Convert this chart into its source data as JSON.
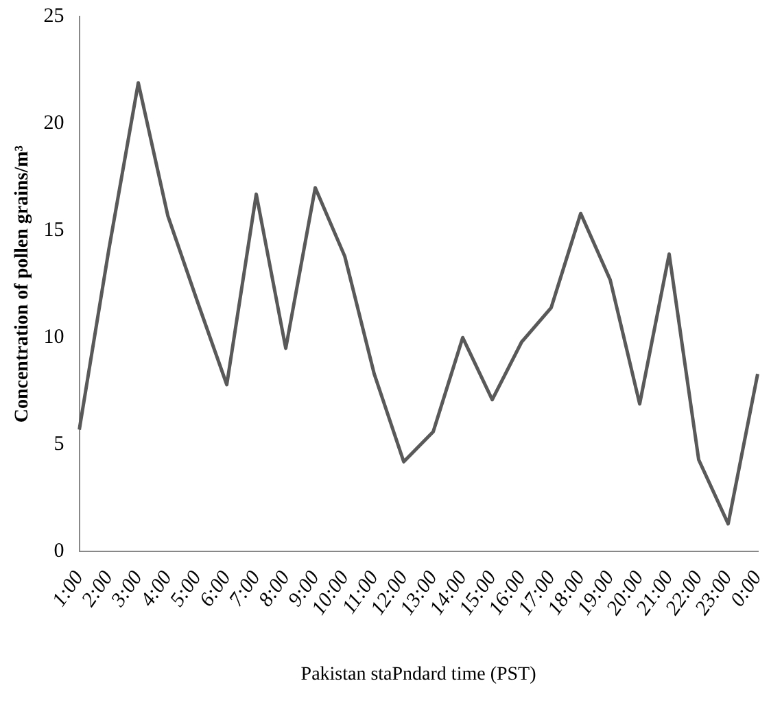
{
  "chart_data": {
    "type": "line",
    "xlabel": "Pakistan staPndard time (PST)",
    "ylabel": "Concentration of pollen grains/m³",
    "categories": [
      "1:00",
      "2:00",
      "3:00",
      "4:00",
      "5:00",
      "6:00",
      "7:00",
      "8:00",
      "9:00",
      "10:00",
      "11:00",
      "12:00",
      "13:00",
      "14:00",
      "15:00",
      "16:00",
      "17:00",
      "18:00",
      "19:00",
      "20:00",
      "21:00",
      "22:00",
      "23:00",
      "0:00"
    ],
    "series": [
      {
        "color": "#595959",
        "values": [
          5.7,
          14.1,
          21.9,
          15.7,
          11.7,
          7.8,
          16.7,
          9.5,
          17,
          13.8,
          8.3,
          4.2,
          5.6,
          10,
          7.1,
          9.8,
          11.4,
          15.8,
          12.7,
          6.9,
          13.9,
          4.3,
          1.3,
          8.3
        ]
      }
    ],
    "ylim": [
      0,
      25
    ],
    "yticks": [
      0,
      5,
      10,
      15,
      20,
      25
    ],
    "grid": false,
    "legend": false,
    "marker": "none",
    "line_style": "solid"
  }
}
